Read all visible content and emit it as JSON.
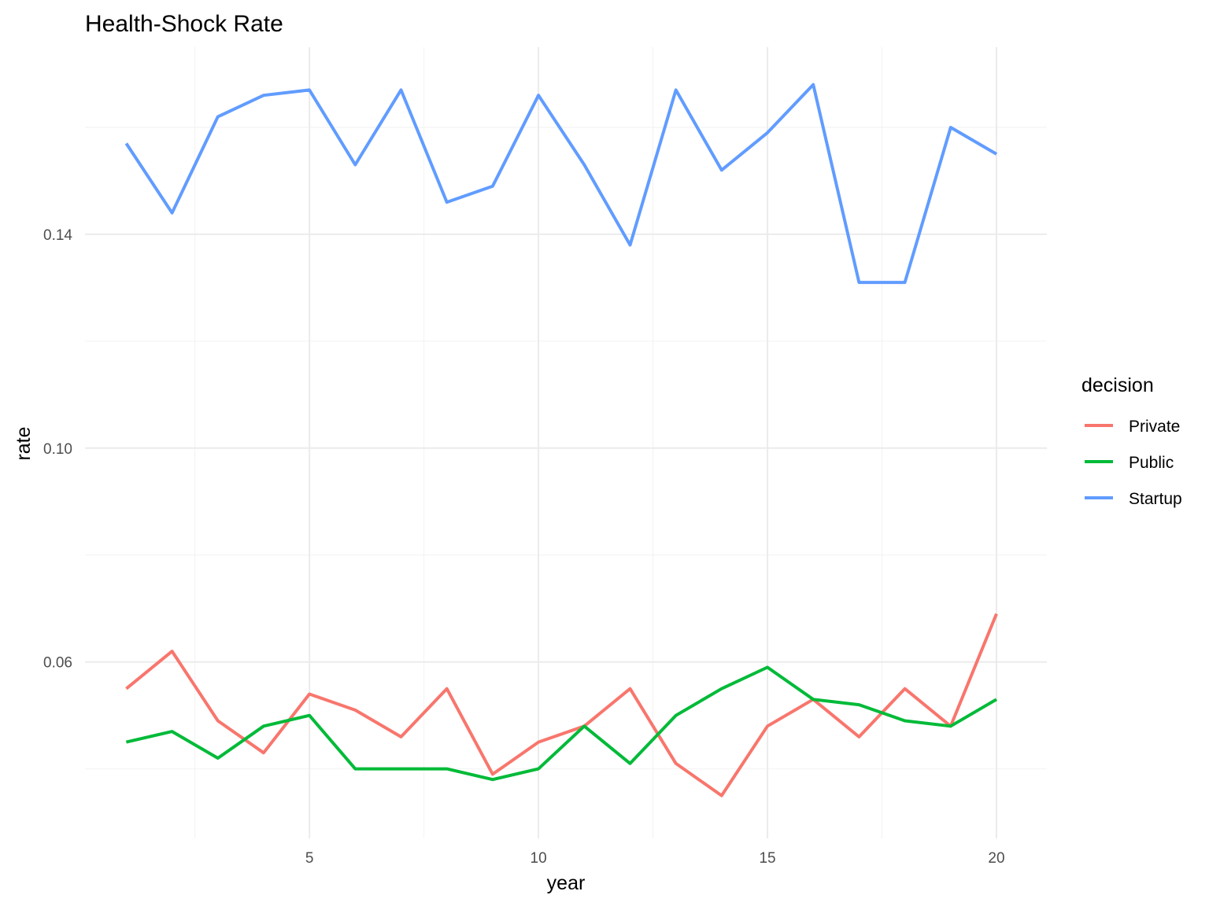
{
  "chart_data": {
    "type": "line",
    "title": "Health-Shock Rate",
    "xlabel": "year",
    "ylabel": "rate",
    "xlim": [
      0.1,
      21.1
    ],
    "ylim": [
      0.027,
      0.175
    ],
    "x_ticks": [
      5,
      10,
      15,
      20
    ],
    "x_tick_labels": [
      "5",
      "10",
      "15",
      "20"
    ],
    "x_minor": [
      2.5,
      7.5,
      12.5,
      17.5
    ],
    "y_ticks": [
      0.06,
      0.1,
      0.14
    ],
    "y_tick_labels": [
      "0.06",
      "0.10",
      "0.14"
    ],
    "y_minor": [
      0.04,
      0.08,
      0.12,
      0.16
    ],
    "grid": true,
    "legend": {
      "title": "decision",
      "position": "right"
    },
    "x": [
      1,
      2,
      3,
      4,
      5,
      6,
      7,
      8,
      9,
      10,
      11,
      12,
      13,
      14,
      15,
      16,
      17,
      18,
      19,
      20
    ],
    "series": [
      {
        "name": "Private",
        "color": "#F8766D",
        "values": [
          0.055,
          0.062,
          0.049,
          0.043,
          0.054,
          0.051,
          0.046,
          0.055,
          0.039,
          0.045,
          0.048,
          0.055,
          0.041,
          0.035,
          0.048,
          0.053,
          0.046,
          0.055,
          0.048,
          0.069
        ]
      },
      {
        "name": "Public",
        "color": "#00BA38",
        "values": [
          0.045,
          0.047,
          0.042,
          0.048,
          0.05,
          0.04,
          0.04,
          0.04,
          0.038,
          0.04,
          0.048,
          0.041,
          0.05,
          0.055,
          0.059,
          0.053,
          0.052,
          0.049,
          0.048,
          0.053
        ]
      },
      {
        "name": "Startup",
        "color": "#619CFF",
        "values": [
          0.157,
          0.144,
          0.162,
          0.166,
          0.167,
          0.153,
          0.167,
          0.146,
          0.149,
          0.166,
          0.153,
          0.138,
          0.167,
          0.152,
          0.159,
          0.168,
          0.131,
          0.131,
          0.16,
          0.155
        ]
      }
    ]
  }
}
